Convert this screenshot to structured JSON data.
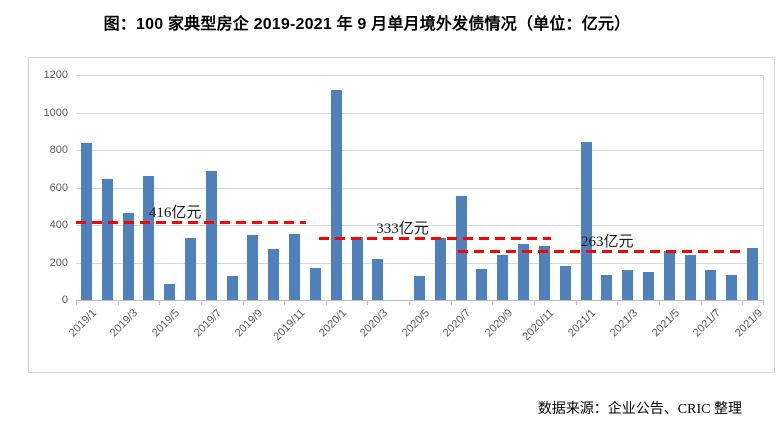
{
  "title": "图：100 家典型房企 2019-2021 年 9 月单月境外发债情况（单位：亿元）",
  "source_note": "数据来源：企业公告、CRIC 整理",
  "chart_data": {
    "type": "bar",
    "title": "图：100 家典型房企 2019-2021 年 9 月单月境外发债情况（单位：亿元）",
    "unit": "亿元",
    "categories": [
      "2019/1",
      "2019/2",
      "2019/3",
      "2019/4",
      "2019/5",
      "2019/6",
      "2019/7",
      "2019/8",
      "2019/9",
      "2019/10",
      "2019/11",
      "2019/12",
      "2020/1",
      "2020/2",
      "2020/3",
      "2020/4",
      "2020/5",
      "2020/6",
      "2020/7",
      "2020/8",
      "2020/9",
      "2020/10",
      "2020/11",
      "2020/12",
      "2021/1",
      "2021/2",
      "2021/3",
      "2021/4",
      "2021/5",
      "2021/6",
      "2021/7",
      "2021/8",
      "2021/9"
    ],
    "values": [
      835,
      645,
      465,
      660,
      85,
      330,
      690,
      130,
      345,
      270,
      350,
      170,
      1120,
      335,
      220,
      0,
      130,
      330,
      555,
      165,
      240,
      300,
      290,
      180,
      845,
      135,
      160,
      150,
      263,
      240,
      160,
      135,
      275
    ],
    "xtick_labels": [
      "2019/1",
      "2019/3",
      "2019/5",
      "2019/7",
      "2019/9",
      "2019/11",
      "2020/1",
      "2020/3",
      "2020/5",
      "2020/7",
      "2020/9",
      "2020/11",
      "2021/1",
      "2021/3",
      "2021/5",
      "2021/7",
      "2021/9"
    ],
    "yticks": [
      0,
      200,
      400,
      600,
      800,
      1000,
      1200
    ],
    "ylim": [
      0,
      1200
    ],
    "grid": true,
    "legend": "none",
    "bar_color": "#4f81bd",
    "gridline_color": "#d9d9d9",
    "axis_text_color": "#595959",
    "reference_lines": [
      {
        "label": "416亿元",
        "value": 416,
        "span_frac": [
          0.0,
          0.335
        ],
        "label_x_frac": 0.106,
        "color": "#ff0000"
      },
      {
        "label": "333亿元",
        "value": 333,
        "span_frac": [
          0.354,
          0.691
        ],
        "label_x_frac": 0.437,
        "color": "#ff0000"
      },
      {
        "label": "263亿元",
        "value": 263,
        "span_frac": [
          0.556,
          0.975
        ],
        "label_x_frac": 0.735,
        "color": "#ff0000"
      }
    ]
  }
}
